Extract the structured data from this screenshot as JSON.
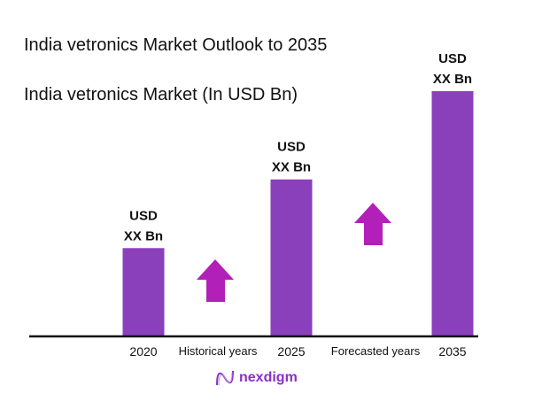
{
  "title": "India vetronics Market Outlook to 2035",
  "subtitle": "India vetronics Market (In USD Bn)",
  "colors": {
    "bar": "#8a3fbb",
    "arrow": "#b31fb9",
    "axis": "#111111"
  },
  "chart_data": {
    "type": "bar",
    "categories": [
      "2020",
      "2025",
      "2035"
    ],
    "values": [
      36,
      64,
      100
    ],
    "value_note_labels": [
      [
        "USD",
        "XX Bn"
      ],
      [
        "USD",
        "XX Bn"
      ],
      [
        "USD",
        "XX Bn"
      ]
    ],
    "period_labels": [
      "Historical years",
      "Forecasted years"
    ],
    "annotations": [
      "up-arrow between 2020 and 2025",
      "up-arrow between 2025 and 2035"
    ],
    "grid": false,
    "legend": "none"
  },
  "logo": {
    "text": "nexdigm",
    "icon": "nexdigm-wave-icon"
  }
}
